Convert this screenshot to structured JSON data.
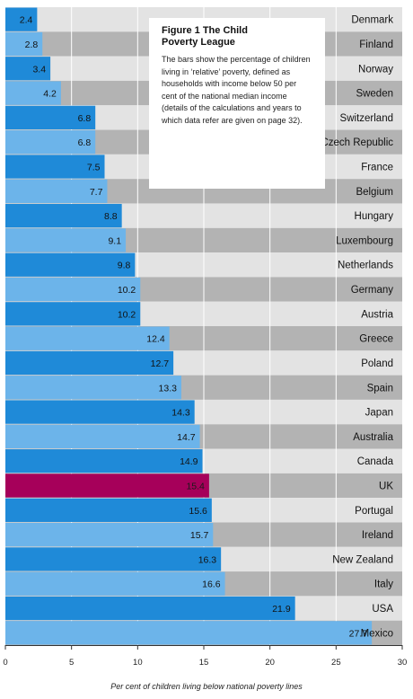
{
  "chart_data": {
    "type": "bar",
    "orientation": "horizontal",
    "categories": [
      "Denmark",
      "Finland",
      "Norway",
      "Sweden",
      "Switzerland",
      "Czech Republic",
      "France",
      "Belgium",
      "Hungary",
      "Luxembourg",
      "Netherlands",
      "Germany",
      "Austria",
      "Greece",
      "Poland",
      "Spain",
      "Japan",
      "Australia",
      "Canada",
      "UK",
      "Portugal",
      "Ireland",
      "New Zealand",
      "Italy",
      "USA",
      "Mexico"
    ],
    "values": [
      2.4,
      2.8,
      3.4,
      4.2,
      6.8,
      6.8,
      7.5,
      7.7,
      8.8,
      9.1,
      9.8,
      10.2,
      10.2,
      12.4,
      12.7,
      13.3,
      14.3,
      14.7,
      14.9,
      15.4,
      15.6,
      15.7,
      16.3,
      16.6,
      21.9,
      27.7
    ],
    "value_labels": [
      "2.4",
      "2.8",
      "3.4",
      "4.2",
      "6.8",
      "6.8",
      "7.5",
      "7.7",
      "8.8",
      "9.1",
      "9.8",
      "10.2",
      "10.2",
      "12.4",
      "12.7",
      "13.3",
      "14.3",
      "14.7",
      "14.9",
      "15.4",
      "15.6",
      "15.7",
      "16.3",
      "16.6",
      "21.9",
      "27.7"
    ],
    "highlight_category": "UK",
    "xlim": [
      0,
      30
    ],
    "xticks": [
      0,
      5,
      10,
      15,
      20,
      25,
      30
    ],
    "xlabel": "Per cent of children living below national poverty lines",
    "grid": true,
    "colors": {
      "bar_dark": "#1f8ad8",
      "bar_light": "#6cb4ea",
      "bar_highlight": "#a6005a",
      "track_light": "#e3e3e3",
      "track_dark": "#b3b3b3",
      "gridline": "#ffffff"
    }
  },
  "caption": {
    "title": "Figure 1  The Child\nPoverty League",
    "body": "The bars show the percentage of children living in ‘relative’ poverty, defined as households with income below 50 per cent of the national median income (details of the calculations and years to which data refer are given on page 32)."
  }
}
